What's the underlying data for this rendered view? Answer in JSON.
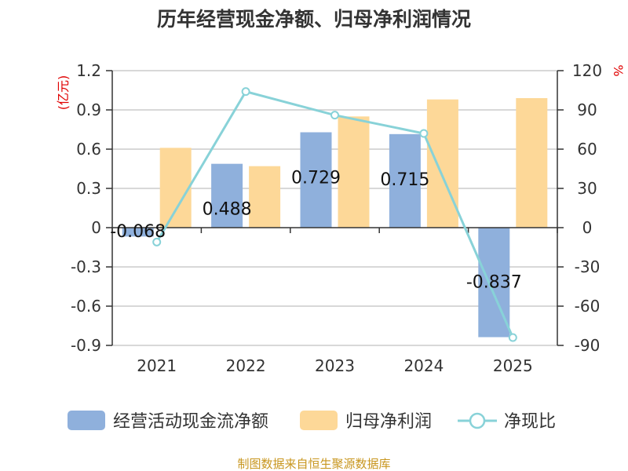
{
  "colors": {
    "cash_flow": "#8fb0dc",
    "net_profit": "#fdd898",
    "ratio": "#88d2d8",
    "unit_text": "#e00000",
    "source_text": "#c8961e"
  },
  "chart_data": {
    "type": "bar",
    "title": "历年经营现金净额、归母净利润情况",
    "categories": [
      "2021",
      "2022",
      "2023",
      "2024",
      "2025"
    ],
    "left_axis": {
      "unit": "(亿元)",
      "ylim": [
        -0.9,
        1.2
      ],
      "ticks": [
        "1.2",
        "0.9",
        "0.6",
        "0.3",
        "0",
        "-0.3",
        "-0.6",
        "-0.9"
      ],
      "tick_values": [
        1.2,
        0.9,
        0.6,
        0.3,
        0,
        -0.3,
        -0.6,
        -0.9
      ]
    },
    "right_axis": {
      "unit": "%",
      "ylim": [
        -90,
        120
      ],
      "ticks": [
        "120",
        "90",
        "60",
        "30",
        "0",
        "-30",
        "-60",
        "-90"
      ],
      "tick_values": [
        120,
        90,
        60,
        30,
        0,
        -30,
        -60,
        -90
      ]
    },
    "series": [
      {
        "name": "经营活动现金流净额",
        "kind": "bar",
        "values": [
          -0.068,
          0.488,
          0.729,
          0.715,
          -0.837
        ],
        "labels": [
          "-0.068",
          "0.488",
          "0.729",
          "0.715",
          "-0.837"
        ]
      },
      {
        "name": "归母净利润",
        "kind": "bar",
        "values": [
          0.61,
          0.47,
          0.85,
          0.98,
          0.99
        ]
      },
      {
        "name": "净现比",
        "kind": "line",
        "axis": "right",
        "values": [
          -11,
          104,
          86,
          72,
          -84
        ]
      }
    ],
    "grid": true,
    "legend_position": "bottom"
  },
  "source": "制图数据来自恒生聚源数据库"
}
